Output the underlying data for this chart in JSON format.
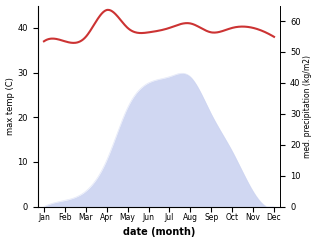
{
  "months": [
    "Jan",
    "Feb",
    "Mar",
    "Apr",
    "May",
    "Jun",
    "Jul",
    "Aug",
    "Sep",
    "Oct",
    "Nov",
    "Dec"
  ],
  "temperature": [
    37,
    37,
    38,
    44,
    40,
    39,
    40,
    41,
    39,
    40,
    40,
    38
  ],
  "precipitation": [
    0,
    2,
    5,
    15,
    32,
    40,
    42,
    42,
    30,
    18,
    5,
    0
  ],
  "temp_color": "#cc3333",
  "precip_fill_color": "#c8d0f0",
  "precip_fill_alpha": 0.85,
  "ylim_left": [
    0,
    45
  ],
  "ylim_right": [
    0,
    65
  ],
  "yticks_left": [
    0,
    10,
    20,
    30,
    40
  ],
  "yticks_right": [
    0,
    10,
    20,
    30,
    40,
    50,
    60
  ],
  "ylabel_left": "max temp (C)",
  "ylabel_right": "med. precipitation (kg/m2)",
  "xlabel": "date (month)",
  "bg_color": "#ffffff"
}
